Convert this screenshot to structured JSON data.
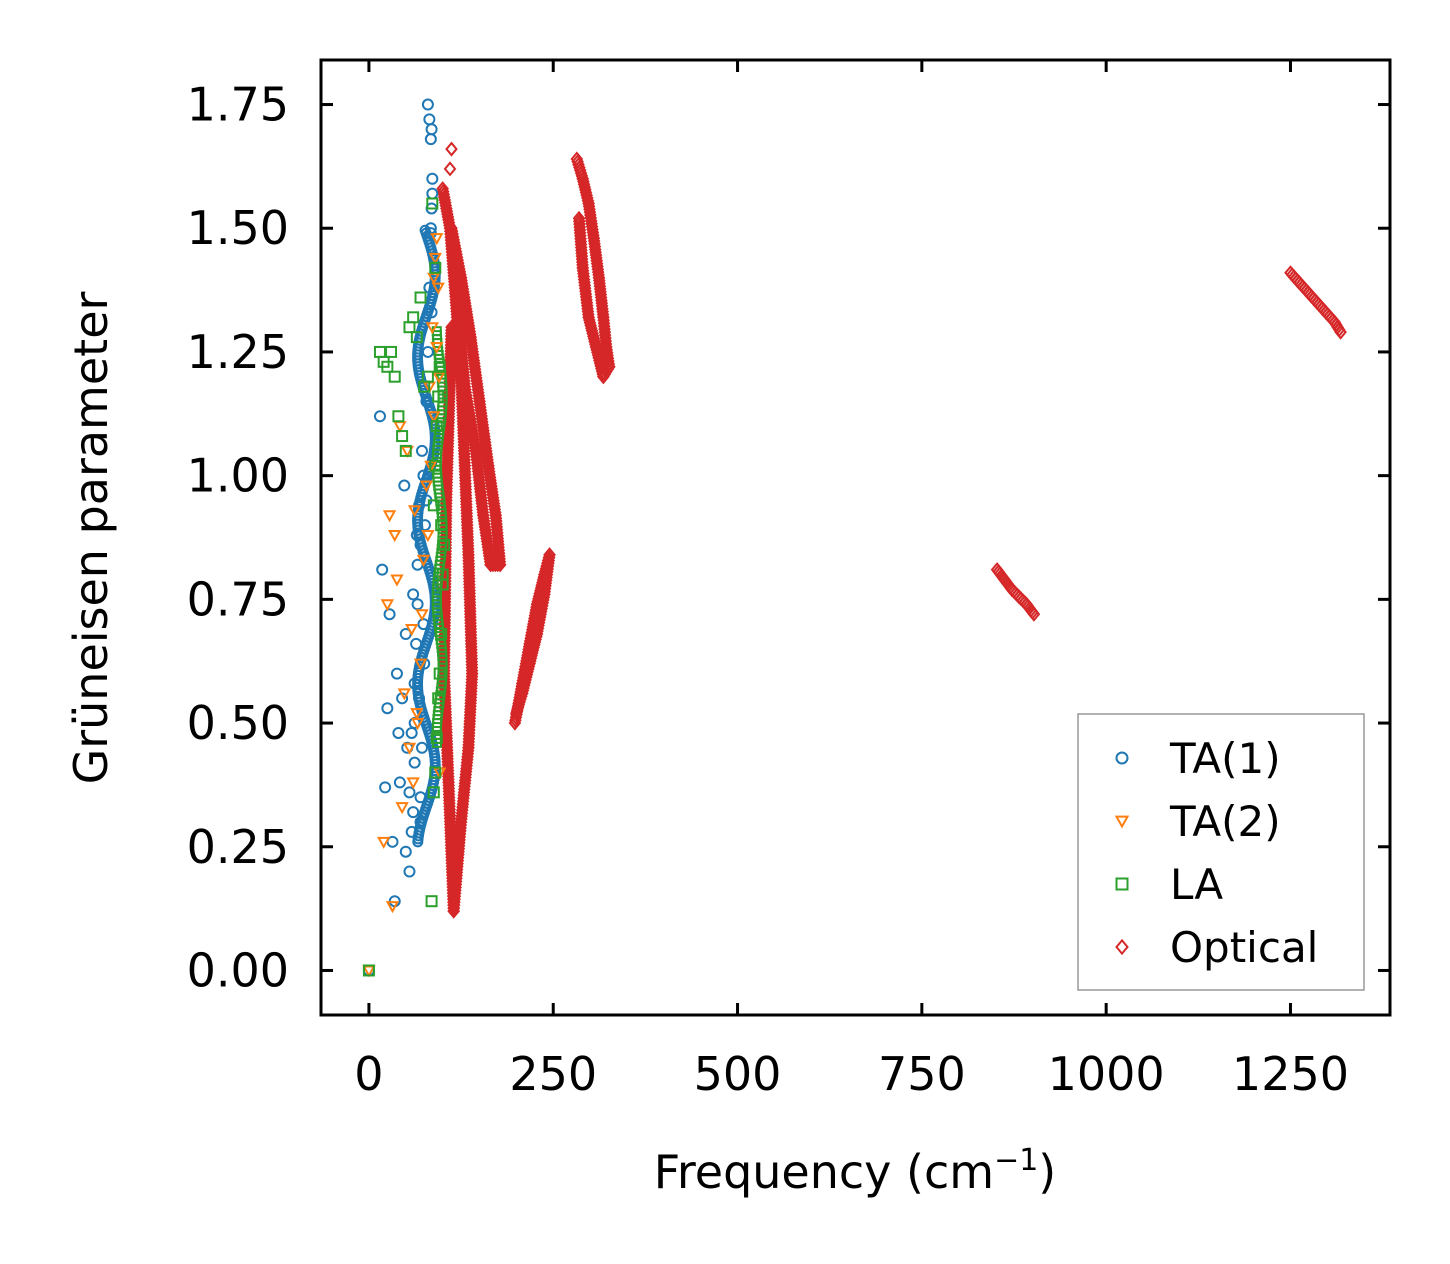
{
  "chart_data": {
    "type": "scatter",
    "title": "",
    "xlabel": "Frequency (cm",
    "xlabel_sup": "−1",
    "xlabel_suffix": ")",
    "ylabel": "Grüneisen parameter",
    "xlim": [
      -65,
      1385
    ],
    "ylim": [
      -0.09,
      1.84
    ],
    "xticks": [
      0,
      250,
      500,
      750,
      1000,
      1250
    ],
    "xtick_labels": [
      "0",
      "250",
      "500",
      "750",
      "1000",
      "1250"
    ],
    "yticks": [
      0.0,
      0.25,
      0.5,
      0.75,
      1.0,
      1.25,
      1.5,
      1.75
    ],
    "ytick_labels": [
      "0.00",
      "0.25",
      "0.50",
      "0.75",
      "1.00",
      "1.25",
      "1.50",
      "1.75"
    ],
    "legend_position": "lower-right",
    "series": [
      {
        "name": "TA(1)",
        "marker": "circle",
        "color": "#1f77b4",
        "x": [
          0,
          15,
          18,
          22,
          25,
          28,
          32,
          35,
          38,
          40,
          42,
          45,
          48,
          50,
          52,
          55,
          58,
          60,
          62,
          65,
          68,
          70,
          72,
          75,
          78,
          80,
          82,
          84,
          85,
          86,
          80,
          82,
          84,
          85,
          86,
          84,
          85,
          70,
          72,
          74,
          76,
          60,
          62,
          64,
          66,
          68,
          50,
          55,
          58,
          62,
          66,
          70,
          74,
          78
        ],
        "y": [
          0.0,
          1.12,
          0.81,
          0.37,
          0.53,
          0.72,
          0.26,
          0.14,
          0.6,
          0.48,
          0.38,
          0.55,
          0.98,
          0.68,
          0.45,
          0.2,
          0.28,
          0.76,
          0.42,
          0.88,
          0.55,
          0.3,
          1.05,
          0.62,
          0.95,
          1.25,
          1.38,
          1.49,
          1.54,
          1.6,
          1.75,
          1.72,
          1.68,
          1.7,
          1.57,
          1.5,
          1.33,
          0.35,
          0.45,
          0.7,
          0.9,
          0.32,
          0.5,
          0.66,
          0.82,
          0.94,
          0.24,
          0.36,
          0.48,
          0.58,
          0.74,
          0.86,
          1.0,
          1.15
        ]
      },
      {
        "name": "TA(2)",
        "marker": "triangle-down",
        "color": "#ff7f0e",
        "x": [
          0,
          20,
          25,
          28,
          32,
          35,
          38,
          42,
          45,
          48,
          52,
          55,
          58,
          62,
          65,
          70,
          74,
          78,
          82,
          86,
          88,
          90,
          92,
          94,
          95,
          96,
          60,
          66,
          72,
          80,
          84,
          88,
          92
        ],
        "y": [
          0.0,
          0.26,
          0.74,
          0.92,
          0.13,
          0.88,
          0.79,
          1.1,
          0.33,
          0.56,
          1.05,
          0.45,
          0.69,
          0.93,
          0.52,
          0.62,
          0.83,
          0.98,
          1.18,
          1.3,
          1.4,
          1.44,
          1.48,
          1.38,
          1.2,
          0.4,
          0.38,
          0.5,
          0.72,
          0.88,
          1.02,
          1.12,
          1.26
        ]
      },
      {
        "name": "LA",
        "marker": "square",
        "color": "#2ca02c",
        "x": [
          0,
          15,
          20,
          25,
          30,
          35,
          40,
          45,
          50,
          55,
          60,
          65,
          70,
          75,
          80,
          85,
          88,
          90,
          92,
          94,
          96,
          98,
          100,
          102,
          88,
          90,
          92,
          94,
          96,
          98,
          100,
          86,
          90
        ],
        "y": [
          0.0,
          1.25,
          1.23,
          1.22,
          1.25,
          1.2,
          1.12,
          1.08,
          1.05,
          1.3,
          1.32,
          1.28,
          1.36,
          1.18,
          1.2,
          0.14,
          0.36,
          0.4,
          0.47,
          0.55,
          0.6,
          0.68,
          0.78,
          0.86,
          0.94,
          1.02,
          1.1,
          1.16,
          1.22,
          0.9,
          0.8,
          1.55,
          1.42
        ]
      },
      {
        "name": "Optical",
        "marker": "diamond",
        "color": "#d62728",
        "x": [
          112,
          110
        ],
        "y": [
          1.66,
          1.62
        ],
        "bands": [
          {
            "x": [
              100,
              110,
              118,
              125,
              130,
              135,
              140,
              135,
              125,
              115,
              108,
              102,
              105,
              112
            ],
            "y": [
              1.58,
              1.5,
              1.35,
              1.2,
              1.02,
              0.84,
              0.6,
              0.45,
              0.3,
              0.12,
              0.38,
              0.6,
              0.95,
              1.3
            ]
          },
          {
            "x": [
              112,
              125,
              138,
              150,
              162,
              172,
              178,
              165,
              155,
              145,
              130,
              120
            ],
            "y": [
              1.5,
              1.4,
              1.28,
              1.15,
              1.02,
              0.92,
              0.82,
              0.82,
              0.92,
              1.05,
              1.18,
              1.35
            ]
          },
          {
            "x": [
              198,
              208,
              218,
              228,
              238,
              245,
              238,
              228,
              218,
              208,
              200
            ],
            "y": [
              0.5,
              0.58,
              0.66,
              0.74,
              0.8,
              0.84,
              0.76,
              0.68,
              0.62,
              0.56,
              0.52
            ]
          },
          {
            "x": [
              282,
              290,
              298,
              305,
              312,
              318,
              322,
              326,
              318,
              308,
              298,
              290,
              285
            ],
            "y": [
              1.64,
              1.6,
              1.55,
              1.48,
              1.4,
              1.32,
              1.26,
              1.22,
              1.2,
              1.26,
              1.32,
              1.42,
              1.52
            ]
          },
          {
            "x": [
              852,
              862,
              872,
              882,
              892,
              902
            ],
            "y": [
              0.81,
              0.79,
              0.77,
              0.755,
              0.74,
              0.72
            ]
          },
          {
            "x": [
              1250,
              1262,
              1274,
              1286,
              1298,
              1310,
              1318
            ],
            "y": [
              1.41,
              1.39,
              1.37,
              1.35,
              1.33,
              1.31,
              1.29
            ]
          }
        ]
      }
    ]
  }
}
